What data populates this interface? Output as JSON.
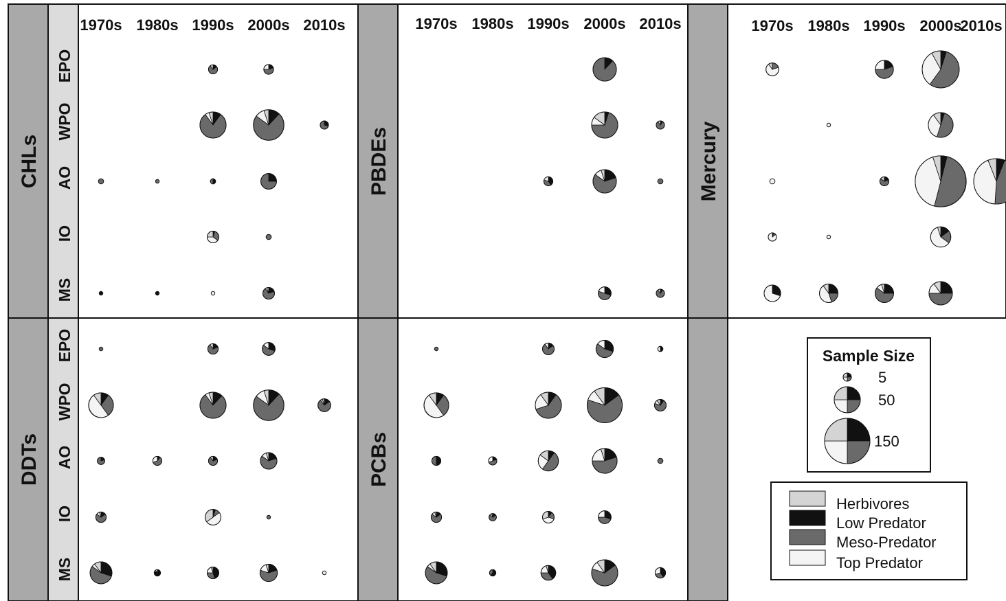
{
  "colors": {
    "Herbivores": "#d4d4d4",
    "Low Predator": "#111111",
    "Meso-Predator": "#6a6a6a",
    "Top Predator": "#f4f4f4",
    "band_dark": "#a9a9a9",
    "band_light": "#dcdcdc",
    "outline": "#111111"
  },
  "chart_data": {
    "type": "pie-grid",
    "decades": [
      "1970s",
      "1980s",
      "1990s",
      "2000s",
      "2010s"
    ],
    "regions": [
      "EPO",
      "WPO",
      "AO",
      "IO",
      "MS"
    ],
    "categories": [
      "Herbivores",
      "Low Predator",
      "Meso-Predator",
      "Top Predator"
    ],
    "slice_order_note": "shares listed in order [Herbivores, Low Predator, Meso-Predator, Top Predator]",
    "panels": [
      {
        "contaminant": "CHLs",
        "cells": [
          {
            "region": "EPO",
            "decade": "1990s",
            "n": 6,
            "shares": [
              0,
              0.15,
              0.75,
              0.1
            ]
          },
          {
            "region": "EPO",
            "decade": "2000s",
            "n": 7,
            "shares": [
              0,
              0.2,
              0.55,
              0.25
            ]
          },
          {
            "region": "WPO",
            "decade": "1990s",
            "n": 50,
            "shares": [
              0.05,
              0.1,
              0.8,
              0.05
            ]
          },
          {
            "region": "WPO",
            "decade": "2000s",
            "n": 68,
            "shares": [
              0.05,
              0.12,
              0.73,
              0.1
            ]
          },
          {
            "region": "WPO",
            "decade": "2010s",
            "n": 5,
            "shares": [
              0,
              0.3,
              0.7,
              0
            ]
          },
          {
            "region": "AO",
            "decade": "1970s",
            "n": 2,
            "shares": [
              0,
              0,
              1,
              0
            ]
          },
          {
            "region": "AO",
            "decade": "1980s",
            "n": 1,
            "shares": [
              0,
              0,
              1,
              0
            ]
          },
          {
            "region": "AO",
            "decade": "1990s",
            "n": 2,
            "shares": [
              0,
              0.5,
              0.5,
              0
            ]
          },
          {
            "region": "AO",
            "decade": "2000s",
            "n": 18,
            "shares": [
              0,
              0.25,
              0.75,
              0
            ]
          },
          {
            "region": "IO",
            "decade": "1990s",
            "n": 10,
            "shares": [
              0.25,
              0.05,
              0.3,
              0.4
            ]
          },
          {
            "region": "IO",
            "decade": "2000s",
            "n": 2,
            "shares": [
              0,
              0,
              1,
              0
            ]
          },
          {
            "region": "MS",
            "decade": "1970s",
            "n": 1,
            "shares": [
              0,
              1,
              0,
              0
            ]
          },
          {
            "region": "MS",
            "decade": "1980s",
            "n": 1,
            "shares": [
              0,
              1,
              0,
              0
            ]
          },
          {
            "region": "MS",
            "decade": "1990s",
            "n": 1,
            "shares": [
              0,
              0,
              0,
              1
            ]
          },
          {
            "region": "MS",
            "decade": "2000s",
            "n": 10,
            "shares": [
              0.05,
              0.2,
              0.7,
              0.05
            ]
          }
        ]
      },
      {
        "contaminant": "PBDEs",
        "cells": [
          {
            "region": "EPO",
            "decade": "2000s",
            "n": 40,
            "shares": [
              0,
              0.12,
              0.88,
              0
            ]
          },
          {
            "region": "WPO",
            "decade": "2000s",
            "n": 50,
            "shares": [
              0.15,
              0.05,
              0.7,
              0.1
            ]
          },
          {
            "region": "WPO",
            "decade": "2010s",
            "n": 5,
            "shares": [
              0,
              0.1,
              0.8,
              0.1
            ]
          },
          {
            "region": "AO",
            "decade": "1990s",
            "n": 6,
            "shares": [
              0,
              0.4,
              0.4,
              0.2
            ]
          },
          {
            "region": "AO",
            "decade": "2000s",
            "n": 40,
            "shares": [
              0.05,
              0.2,
              0.65,
              0.1
            ]
          },
          {
            "region": "AO",
            "decade": "2010s",
            "n": 2,
            "shares": [
              0,
              0,
              1,
              0
            ]
          },
          {
            "region": "MS",
            "decade": "2000s",
            "n": 12,
            "shares": [
              0,
              0.3,
              0.5,
              0.2
            ]
          },
          {
            "region": "MS",
            "decade": "2010s",
            "n": 5,
            "shares": [
              0,
              0.1,
              0.8,
              0.1
            ]
          }
        ]
      },
      {
        "contaminant": "Mercury",
        "cells": [
          {
            "region": "EPO",
            "decade": "1970s",
            "n": 12,
            "shares": [
              0.1,
              0,
              0.2,
              0.7
            ]
          },
          {
            "region": "EPO",
            "decade": "1990s",
            "n": 24,
            "shares": [
              0,
              0.2,
              0.55,
              0.25
            ]
          },
          {
            "region": "EPO",
            "decade": "2000s",
            "n": 100,
            "shares": [
              0.08,
              0.05,
              0.55,
              0.32
            ]
          },
          {
            "region": "WPO",
            "decade": "1980s",
            "n": 1,
            "shares": [
              0,
              0,
              0,
              1
            ]
          },
          {
            "region": "WPO",
            "decade": "2000s",
            "n": 45,
            "shares": [
              0.1,
              0.05,
              0.5,
              0.35
            ]
          },
          {
            "region": "AO",
            "decade": "1970s",
            "n": 2,
            "shares": [
              0,
              0,
              0,
              1
            ]
          },
          {
            "region": "AO",
            "decade": "1990s",
            "n": 6,
            "shares": [
              0.15,
              0.2,
              0.65,
              0
            ]
          },
          {
            "region": "AO",
            "decade": "2000s",
            "n": 190,
            "shares": [
              0.05,
              0.04,
              0.5,
              0.41
            ]
          },
          {
            "region": "AO",
            "decade": "2010s",
            "n": 150,
            "shares": [
              0.06,
              0.06,
              0.45,
              0.43
            ]
          },
          {
            "region": "IO",
            "decade": "1970s",
            "n": 5,
            "shares": [
              0,
              0.05,
              0.1,
              0.85
            ]
          },
          {
            "region": "IO",
            "decade": "1980s",
            "n": 1,
            "shares": [
              0,
              0,
              0,
              1
            ]
          },
          {
            "region": "IO",
            "decade": "2000s",
            "n": 30,
            "shares": [
              0.05,
              0.15,
              0.2,
              0.6
            ]
          },
          {
            "region": "MS",
            "decade": "1970s",
            "n": 20,
            "shares": [
              0,
              0.3,
              0,
              0.7
            ]
          },
          {
            "region": "MS",
            "decade": "1980s",
            "n": 25,
            "shares": [
              0.1,
              0.25,
              0.2,
              0.45
            ]
          },
          {
            "region": "MS",
            "decade": "1990s",
            "n": 25,
            "shares": [
              0.05,
              0.25,
              0.6,
              0.1
            ]
          },
          {
            "region": "MS",
            "decade": "2000s",
            "n": 40,
            "shares": [
              0.1,
              0.25,
              0.5,
              0.15
            ]
          }
        ]
      },
      {
        "contaminant": "DDTs",
        "cells": [
          {
            "region": "EPO",
            "decade": "1970s",
            "n": 1,
            "shares": [
              0,
              0,
              1,
              0
            ]
          },
          {
            "region": "EPO",
            "decade": "1990s",
            "n": 8,
            "shares": [
              0,
              0.2,
              0.7,
              0.1
            ]
          },
          {
            "region": "EPO",
            "decade": "2000s",
            "n": 12,
            "shares": [
              0,
              0.3,
              0.55,
              0.15
            ]
          },
          {
            "region": "WPO",
            "decade": "1970s",
            "n": 45,
            "shares": [
              0.1,
              0.1,
              0.3,
              0.5
            ]
          },
          {
            "region": "WPO",
            "decade": "1990s",
            "n": 50,
            "shares": [
              0.05,
              0.12,
              0.78,
              0.05
            ]
          },
          {
            "region": "WPO",
            "decade": "2000s",
            "n": 68,
            "shares": [
              0.05,
              0.12,
              0.73,
              0.1
            ]
          },
          {
            "region": "WPO",
            "decade": "2010s",
            "n": 12,
            "shares": [
              0.05,
              0.15,
              0.75,
              0.05
            ]
          },
          {
            "region": "AO",
            "decade": "1970s",
            "n": 4,
            "shares": [
              0,
              0.2,
              0.8,
              0
            ]
          },
          {
            "region": "AO",
            "decade": "1980s",
            "n": 6,
            "shares": [
              0,
              0.1,
              0.6,
              0.3
            ]
          },
          {
            "region": "AO",
            "decade": "1990s",
            "n": 6,
            "shares": [
              0,
              0.2,
              0.7,
              0.1
            ]
          },
          {
            "region": "AO",
            "decade": "2000s",
            "n": 20,
            "shares": [
              0.05,
              0.2,
              0.65,
              0.1
            ]
          },
          {
            "region": "IO",
            "decade": "1970s",
            "n": 8,
            "shares": [
              0.05,
              0.15,
              0.7,
              0.1
            ]
          },
          {
            "region": "IO",
            "decade": "1990s",
            "n": 18,
            "shares": [
              0.35,
              0.05,
              0.1,
              0.5
            ]
          },
          {
            "region": "IO",
            "decade": "2000s",
            "n": 1,
            "shares": [
              0,
              0,
              1,
              0
            ]
          },
          {
            "region": "MS",
            "decade": "1970s",
            "n": 35,
            "shares": [
              0.1,
              0.3,
              0.55,
              0.05
            ]
          },
          {
            "region": "MS",
            "decade": "1980s",
            "n": 3,
            "shares": [
              0,
              0.8,
              0.1,
              0.1
            ]
          },
          {
            "region": "MS",
            "decade": "1990s",
            "n": 10,
            "shares": [
              0.05,
              0.45,
              0.3,
              0.2
            ]
          },
          {
            "region": "MS",
            "decade": "2000s",
            "n": 22,
            "shares": [
              0.05,
              0.2,
              0.6,
              0.15
            ]
          },
          {
            "region": "MS",
            "decade": "2010s",
            "n": 1,
            "shares": [
              0,
              0,
              0,
              1
            ]
          }
        ]
      },
      {
        "contaminant": "PCBs",
        "cells": [
          {
            "region": "EPO",
            "decade": "1970s",
            "n": 1,
            "shares": [
              0,
              0,
              1,
              0
            ]
          },
          {
            "region": "EPO",
            "decade": "1990s",
            "n": 10,
            "shares": [
              0,
              0.15,
              0.75,
              0.1
            ]
          },
          {
            "region": "EPO",
            "decade": "2000s",
            "n": 22,
            "shares": [
              0,
              0.3,
              0.55,
              0.15
            ]
          },
          {
            "region": "EPO",
            "decade": "2010s",
            "n": 2,
            "shares": [
              0,
              0.5,
              0,
              0.5
            ]
          },
          {
            "region": "WPO",
            "decade": "1970s",
            "n": 45,
            "shares": [
              0.1,
              0.1,
              0.3,
              0.5
            ]
          },
          {
            "region": "WPO",
            "decade": "1990s",
            "n": 50,
            "shares": [
              0.1,
              0.1,
              0.6,
              0.2
            ]
          },
          {
            "region": "WPO",
            "decade": "2000s",
            "n": 90,
            "shares": [
              0.1,
              0.15,
              0.65,
              0.1
            ]
          },
          {
            "region": "WPO",
            "decade": "2010s",
            "n": 10,
            "shares": [
              0.1,
              0.1,
              0.7,
              0.1
            ]
          },
          {
            "region": "AO",
            "decade": "1970s",
            "n": 6,
            "shares": [
              0,
              0.5,
              0.5,
              0
            ]
          },
          {
            "region": "AO",
            "decade": "1980s",
            "n": 5,
            "shares": [
              0,
              0.2,
              0.5,
              0.3
            ]
          },
          {
            "region": "AO",
            "decade": "1990s",
            "n": 30,
            "shares": [
              0.15,
              0.1,
              0.5,
              0.25
            ]
          },
          {
            "region": "AO",
            "decade": "2000s",
            "n": 45,
            "shares": [
              0.05,
              0.2,
              0.55,
              0.2
            ]
          },
          {
            "region": "AO",
            "decade": "2010s",
            "n": 2,
            "shares": [
              0,
              0,
              1,
              0
            ]
          },
          {
            "region": "IO",
            "decade": "1970s",
            "n": 8,
            "shares": [
              0.05,
              0.15,
              0.7,
              0.1
            ]
          },
          {
            "region": "IO",
            "decade": "1980s",
            "n": 4,
            "shares": [
              0.05,
              0.15,
              0.7,
              0.1
            ]
          },
          {
            "region": "IO",
            "decade": "1990s",
            "n": 10,
            "shares": [
              0.3,
              0.1,
              0.2,
              0.4
            ]
          },
          {
            "region": "IO",
            "decade": "2000s",
            "n": 12,
            "shares": [
              0,
              0.3,
              0.45,
              0.25
            ]
          },
          {
            "region": "MS",
            "decade": "1970s",
            "n": 35,
            "shares": [
              0.1,
              0.3,
              0.55,
              0.05
            ]
          },
          {
            "region": "MS",
            "decade": "1980s",
            "n": 3,
            "shares": [
              0,
              0.6,
              0.4,
              0
            ]
          },
          {
            "region": "MS",
            "decade": "1990s",
            "n": 16,
            "shares": [
              0.05,
              0.4,
              0.35,
              0.2
            ]
          },
          {
            "region": "MS",
            "decade": "2000s",
            "n": 50,
            "shares": [
              0.1,
              0.15,
              0.65,
              0.1
            ]
          },
          {
            "region": "MS",
            "decade": "2010s",
            "n": 8,
            "shares": [
              0,
              0.4,
              0.3,
              0.3
            ]
          }
        ]
      }
    ],
    "legend": {
      "size_title": "Sample Size",
      "size_labels": [
        "5",
        "50",
        "150"
      ],
      "sizes": [
        5,
        50,
        150
      ],
      "category_labels": [
        "Herbivores",
        "Low Predator",
        "Meso-Predator",
        "Top Predator"
      ]
    }
  }
}
